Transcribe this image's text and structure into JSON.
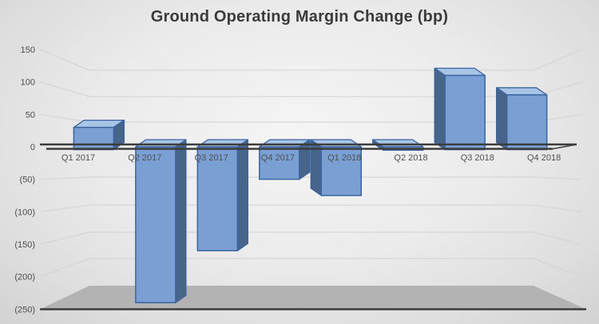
{
  "chart_data": {
    "type": "bar",
    "style": "3d-clustered-column",
    "title": "Ground Operating Margin Change (bp)",
    "categories": [
      "Q1 2017",
      "Q2 2017",
      "Q3 2017",
      "Q4 2017",
      "Q1 2018",
      "Q2 2018",
      "Q3 2018",
      "Q4 2018"
    ],
    "values": [
      30,
      -240,
      -160,
      -50,
      -75,
      -5,
      110,
      80
    ],
    "xlabel": "",
    "ylabel": "",
    "ylim": [
      -250,
      150
    ],
    "yticks": {
      "labels": [
        "150",
        "100",
        "50",
        "0",
        "(50)",
        "(100)",
        "(150)",
        "(200)",
        "(250)"
      ],
      "values": [
        150,
        100,
        50,
        0,
        -50,
        -100,
        -150,
        -200,
        -250
      ]
    },
    "grid": true,
    "legend": false,
    "colors": {
      "bar_front": "#7AA0D3",
      "bar_top": "#A9C5E6",
      "bar_side": "#47648A",
      "bar_border": "#3B64A0",
      "axis_line": "#3C3C3C",
      "floor": "#B3B3B3",
      "gridline": "#D4D4D4",
      "title_text": "#3B3B3B",
      "tick_text": "#4C4C4C",
      "category_text": "#4F4F4F"
    }
  }
}
